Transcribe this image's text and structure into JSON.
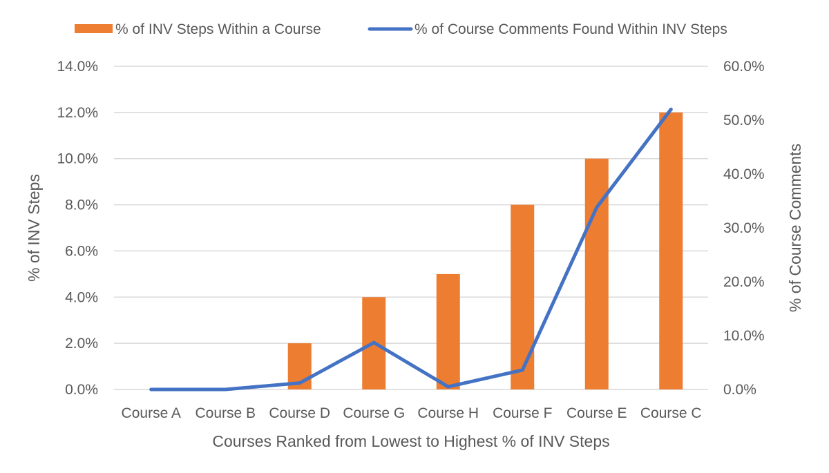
{
  "chart_data": {
    "type": "bar",
    "categories": [
      "Course A",
      "Course B",
      "Course D",
      "Course G",
      "Course H",
      "Course F",
      "Course E",
      "Course C"
    ],
    "series": [
      {
        "name": "% of INV Steps Within a Course",
        "type": "bar",
        "axis": "left",
        "color": "#ED7D31",
        "values": [
          0.0,
          0.0,
          2.0,
          4.0,
          5.0,
          8.0,
          10.0,
          12.0
        ]
      },
      {
        "name": "% of Course Comments Found Within INV Steps",
        "type": "line",
        "axis": "right",
        "color": "#4472C4",
        "values": [
          0.0,
          0.0,
          1.2,
          8.7,
          0.5,
          3.6,
          33.8,
          52.0
        ]
      }
    ],
    "xlabel": "Courses Ranked from Lowest to Highest % of INV Steps",
    "ylabel": "% of INV Steps",
    "y2label": "% of Course Comments",
    "ylim": [
      0,
      14
    ],
    "y2lim": [
      0,
      60
    ],
    "yticks": [
      "0.0%",
      "2.0%",
      "4.0%",
      "6.0%",
      "8.0%",
      "10.0%",
      "12.0%",
      "14.0%"
    ],
    "y2ticks": [
      "0.0%",
      "10.0%",
      "20.0%",
      "30.0%",
      "40.0%",
      "50.0%",
      "60.0%"
    ],
    "grid": true,
    "legend": "top"
  }
}
